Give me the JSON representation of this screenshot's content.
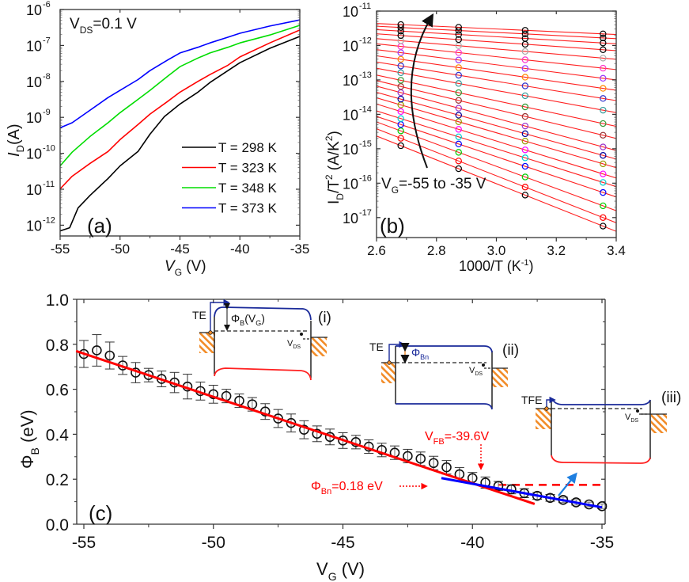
{
  "chart_data": [
    {
      "id": "a",
      "type": "line",
      "panel_label": "(a)",
      "annotation": {
        "main": "V",
        "sub": "DS",
        "rest": "=0.1 V"
      },
      "xlabel": {
        "main": "V",
        "sub": "G",
        "rest": " (V)"
      },
      "ylabel": {
        "main": "I",
        "sub": "D",
        "rest": "(A)"
      },
      "xlim": [
        -55,
        -35
      ],
      "ylim_log10": [
        -12.3,
        -6
      ],
      "yscale": "log",
      "x_ticks": [
        -55,
        -50,
        -45,
        -40,
        -35
      ],
      "x_tick_labels": [
        "-55",
        "-50",
        "-45",
        "-40",
        "-35"
      ],
      "y_ticks_exp": [
        -12,
        -11,
        -10,
        -9,
        -8,
        -7,
        -6
      ],
      "y_tick_labels": [
        "10",
        "10",
        "10",
        "10",
        "10",
        "10",
        "10"
      ],
      "y_tick_exponents": [
        "-12",
        "-11",
        "-10",
        "-9",
        "-8",
        "-7",
        "-6"
      ],
      "legend_position": "bottom-right",
      "series": [
        {
          "name": "T = 298 K",
          "color": "#000000",
          "x": [
            -55,
            -54.2,
            -53.5,
            -52.5,
            -51,
            -50,
            -48.5,
            -47.5,
            -46.3,
            -45,
            -43.5,
            -42.5,
            -41,
            -40,
            -37.5,
            -35
          ],
          "log10_y": [
            -12.16,
            -12.07,
            -11.52,
            -11.17,
            -10.7,
            -10.35,
            -9.95,
            -9.47,
            -8.98,
            -8.63,
            -8.3,
            -8.03,
            -7.7,
            -7.48,
            -7.08,
            -6.75
          ]
        },
        {
          "name": "T = 323 K",
          "color": "#ff0000",
          "x": [
            -55,
            -54,
            -52.5,
            -51,
            -50,
            -48.5,
            -47.5,
            -46,
            -45,
            -43.5,
            -42.5,
            -41,
            -40,
            -37.5,
            -35
          ],
          "log10_y": [
            -10.99,
            -10.64,
            -10.28,
            -9.95,
            -9.62,
            -9.2,
            -8.91,
            -8.55,
            -8.3,
            -8.0,
            -7.81,
            -7.55,
            -7.32,
            -6.93,
            -6.57
          ]
        },
        {
          "name": "T = 348 K",
          "color": "#00dd00",
          "x": [
            -55,
            -54,
            -52.5,
            -51,
            -50,
            -48.5,
            -47.5,
            -46,
            -45,
            -43.5,
            -42.5,
            -41,
            -40,
            -37.5,
            -35
          ],
          "log10_y": [
            -10.35,
            -9.97,
            -9.53,
            -9.15,
            -8.87,
            -8.5,
            -8.25,
            -7.85,
            -7.59,
            -7.35,
            -7.21,
            -7.05,
            -6.93,
            -6.71,
            -6.44
          ]
        },
        {
          "name": "T = 373 K",
          "color": "#0000ff",
          "x": [
            -55,
            -54,
            -52.5,
            -51,
            -50,
            -48.5,
            -47.5,
            -46,
            -45,
            -43.5,
            -42.5,
            -41,
            -40,
            -37.5,
            -35
          ],
          "log10_y": [
            -9.29,
            -9.15,
            -8.8,
            -8.45,
            -8.25,
            -7.95,
            -7.7,
            -7.4,
            -7.21,
            -7.05,
            -6.93,
            -6.77,
            -6.66,
            -6.46,
            -6.29
          ]
        }
      ]
    },
    {
      "id": "b",
      "type": "scatter",
      "panel_label": "(b)",
      "annotation": {
        "main": "V",
        "sub": "G",
        "rest": "=-55 to -35 V"
      },
      "xlabel": {
        "main": "1000/T (K",
        "sup": "-1",
        "rest": ")"
      },
      "ylabel": {
        "main": "I",
        "sub": "D",
        "mid": "/T",
        "sup": "2",
        "rest": " (A/K",
        "sup2": "2",
        "rest2": ")"
      },
      "xlim": [
        2.6,
        3.4
      ],
      "ylim_log10": [
        -17.58,
        -11
      ],
      "yscale": "log",
      "x_ticks": [
        2.6,
        2.8,
        3.0,
        3.2,
        3.4
      ],
      "x_tick_labels": [
        "2.6",
        "2.8",
        "3.0",
        "3.2",
        "3.4"
      ],
      "y_ticks_exp": [
        -17,
        -16,
        -15,
        -14,
        -13,
        -12,
        -11
      ],
      "y_tick_labels": [
        "10",
        "10",
        "10",
        "10",
        "10",
        "10",
        "10"
      ],
      "y_tick_exponents": [
        "-17",
        "-16",
        "-15",
        "-14",
        "-13",
        "-12",
        "-11"
      ],
      "marker_x": [
        2.681,
        2.874,
        3.096,
        3.356
      ],
      "fit_color": "#ff2020",
      "vg_values": [
        -55,
        -54,
        -53,
        -52,
        -51,
        -50,
        -49,
        -48,
        -47,
        -46,
        -45,
        -44,
        -43,
        -42,
        -41,
        -40,
        -39,
        -38,
        -37,
        -36,
        -35
      ],
      "fit_log10_at_x2_6": [
        -14.63,
        -14.42,
        -14.22,
        -14.06,
        -13.9,
        -13.7,
        -13.52,
        -13.36,
        -13.18,
        -13.02,
        -12.86,
        -12.66,
        -12.48,
        -12.3,
        -12.12,
        -11.95,
        -11.8,
        -11.66,
        -11.54,
        -11.44,
        -11.36
      ],
      "fit_log10_at_x3_4": [
        -17.4,
        -17.15,
        -16.8,
        -16.4,
        -16.1,
        -15.85,
        -15.55,
        -15.3,
        -15.05,
        -14.7,
        -14.35,
        -13.95,
        -13.6,
        -13.3,
        -13.0,
        -12.7,
        -12.4,
        -12.15,
        -11.95,
        -11.8,
        -11.68
      ],
      "marker_colors": [
        "#000000",
        "#ff0000",
        "#00cc00",
        "#0000ff",
        "#00cccc",
        "#ff00ff",
        "#999900",
        "#000099",
        "#9933cc",
        "#993333",
        "#339933",
        "#339999",
        "#3333cc",
        "#ff8800",
        "#9933ff",
        "#ff33cc",
        "#aaaaaa",
        "#000000",
        "#000000",
        "#000000",
        "#000000"
      ]
    },
    {
      "id": "c",
      "type": "scatter",
      "panel_label": "(c)",
      "xlabel": {
        "main": "V",
        "sub": "G",
        "rest": " (V)"
      },
      "ylabel": {
        "main": "Φ",
        "sub": "B",
        "rest": " (eV)"
      },
      "xlim": [
        -55.3,
        -34.9
      ],
      "ylim": [
        0,
        1.0
      ],
      "x_ticks": [
        -55,
        -50,
        -45,
        -40,
        -35
      ],
      "x_tick_labels": [
        "-55",
        "-50",
        "-45",
        "-40",
        "-35"
      ],
      "y_ticks": [
        0.0,
        0.2,
        0.4,
        0.6,
        0.8,
        1.0
      ],
      "y_tick_labels": [
        "0.0",
        "0.2",
        "0.4",
        "0.6",
        "0.8",
        "1.0"
      ],
      "points": {
        "x": [
          -55,
          -54.5,
          -54,
          -53.5,
          -53,
          -52.5,
          -52,
          -51.5,
          -51,
          -50.5,
          -50,
          -49.5,
          -49,
          -48.5,
          -48,
          -47.5,
          -47,
          -46.5,
          -46,
          -45.5,
          -45,
          -44.5,
          -44,
          -43.5,
          -43,
          -42.5,
          -42,
          -41.5,
          -41,
          -40.5,
          -40,
          -39.5,
          -39,
          -38.5,
          -38,
          -37.5,
          -37,
          -36.5,
          -36,
          -35.5,
          -35
        ],
        "y": [
          0.757,
          0.773,
          0.75,
          0.706,
          0.674,
          0.663,
          0.646,
          0.63,
          0.612,
          0.592,
          0.578,
          0.57,
          0.549,
          0.533,
          0.501,
          0.47,
          0.45,
          0.42,
          0.402,
          0.388,
          0.372,
          0.365,
          0.345,
          0.33,
          0.318,
          0.303,
          0.291,
          0.272,
          0.253,
          0.222,
          0.205,
          0.185,
          0.17,
          0.155,
          0.138,
          0.126,
          0.117,
          0.108,
          0.097,
          0.088,
          0.08
        ],
        "err": [
          0.06,
          0.07,
          0.06,
          0.04,
          0.045,
          0.03,
          0.035,
          0.045,
          0.055,
          0.04,
          0.04,
          0.03,
          0.03,
          0.03,
          0.035,
          0.04,
          0.04,
          0.04,
          0.035,
          0.035,
          0.035,
          0.03,
          0.03,
          0.03,
          0.03,
          0.03,
          0.03,
          0.03,
          0.03,
          0.03,
          0.025,
          0.025,
          0.02,
          0.02,
          0.02,
          0.015,
          0.015,
          0.012,
          0.012,
          0.01,
          0.01
        ]
      },
      "fit_red": {
        "x": [
          -55.3,
          -37.6
        ],
        "y": [
          0.77,
          0.09
        ],
        "color": "#ff0000"
      },
      "fit_blue": {
        "x": [
          -41.2,
          -35
        ],
        "y": [
          0.205,
          0.075
        ],
        "color": "#0000ff"
      },
      "flatband_dashed": {
        "x": [
          -39.0,
          -35
        ],
        "y": 0.175,
        "color": "#ff0000"
      },
      "annotations": {
        "vfb": {
          "main": "V",
          "sub": "FB",
          "rest": "=-39.6V",
          "color": "#ff0000"
        },
        "phibn": {
          "main": "Φ",
          "sub": "Bn",
          "rest": "=0.18 eV",
          "color": "#ff0000"
        }
      },
      "insets": {
        "i": {
          "label": "(i)",
          "te": "TE",
          "barrier": {
            "main": "Φ",
            "sub": "B",
            "mid": "(V",
            "sub2": "G",
            "rest": ")"
          },
          "vds": {
            "main": "V",
            "sub": "DS"
          }
        },
        "ii": {
          "label": "(ii)",
          "te": "TE",
          "barrier": {
            "main": "Φ",
            "sub": "Bn"
          },
          "vds": {
            "main": "V",
            "sub": "DS"
          }
        },
        "iii": {
          "label": "(iii)",
          "te": "TFE",
          "vds": {
            "main": "V",
            "sub": "DS"
          }
        }
      }
    }
  ]
}
